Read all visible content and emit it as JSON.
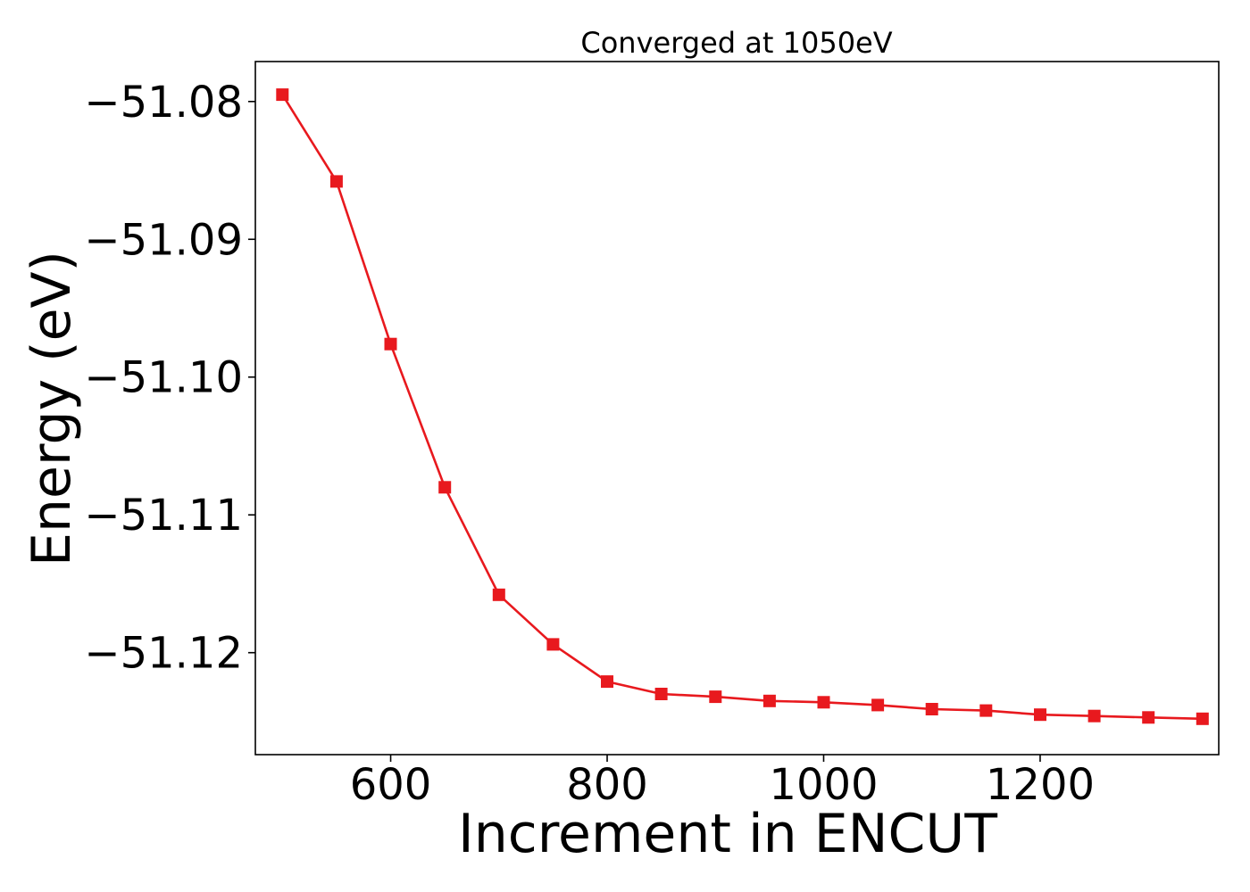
{
  "chart_data": {
    "type": "line",
    "title": "Converged at 1050eV",
    "xlabel": "Increment in ENCUT",
    "ylabel": "Energy (eV)",
    "xlim": [
      475,
      1365
    ],
    "ylim": [
      -51.1274,
      -51.0771
    ],
    "x_ticks": [
      600,
      800,
      1000,
      1200
    ],
    "x_tick_labels": [
      "600",
      "800",
      "1000",
      "1200"
    ],
    "y_ticks": [
      -51.08,
      -51.09,
      -51.1,
      -51.11,
      -51.12
    ],
    "y_tick_labels": [
      "−51.08",
      "−51.09",
      "−51.10",
      "−51.11",
      "−51.12"
    ],
    "grid": false,
    "legend": "none",
    "series": [
      {
        "color": "#e8191e",
        "marker": "square",
        "x": [
          500,
          550,
          600,
          650,
          700,
          750,
          800,
          850,
          900,
          950,
          1000,
          1050,
          1100,
          1150,
          1200,
          1250,
          1300,
          1350
        ],
        "y": [
          -51.0795,
          -51.0858,
          -51.0976,
          -51.108,
          -51.1158,
          -51.1194,
          -51.1221,
          -51.123,
          -51.1232,
          -51.1235,
          -51.1236,
          -51.1238,
          -51.1241,
          -51.1242,
          -51.1245,
          -51.1246,
          -51.1247,
          -51.1248
        ]
      }
    ]
  }
}
